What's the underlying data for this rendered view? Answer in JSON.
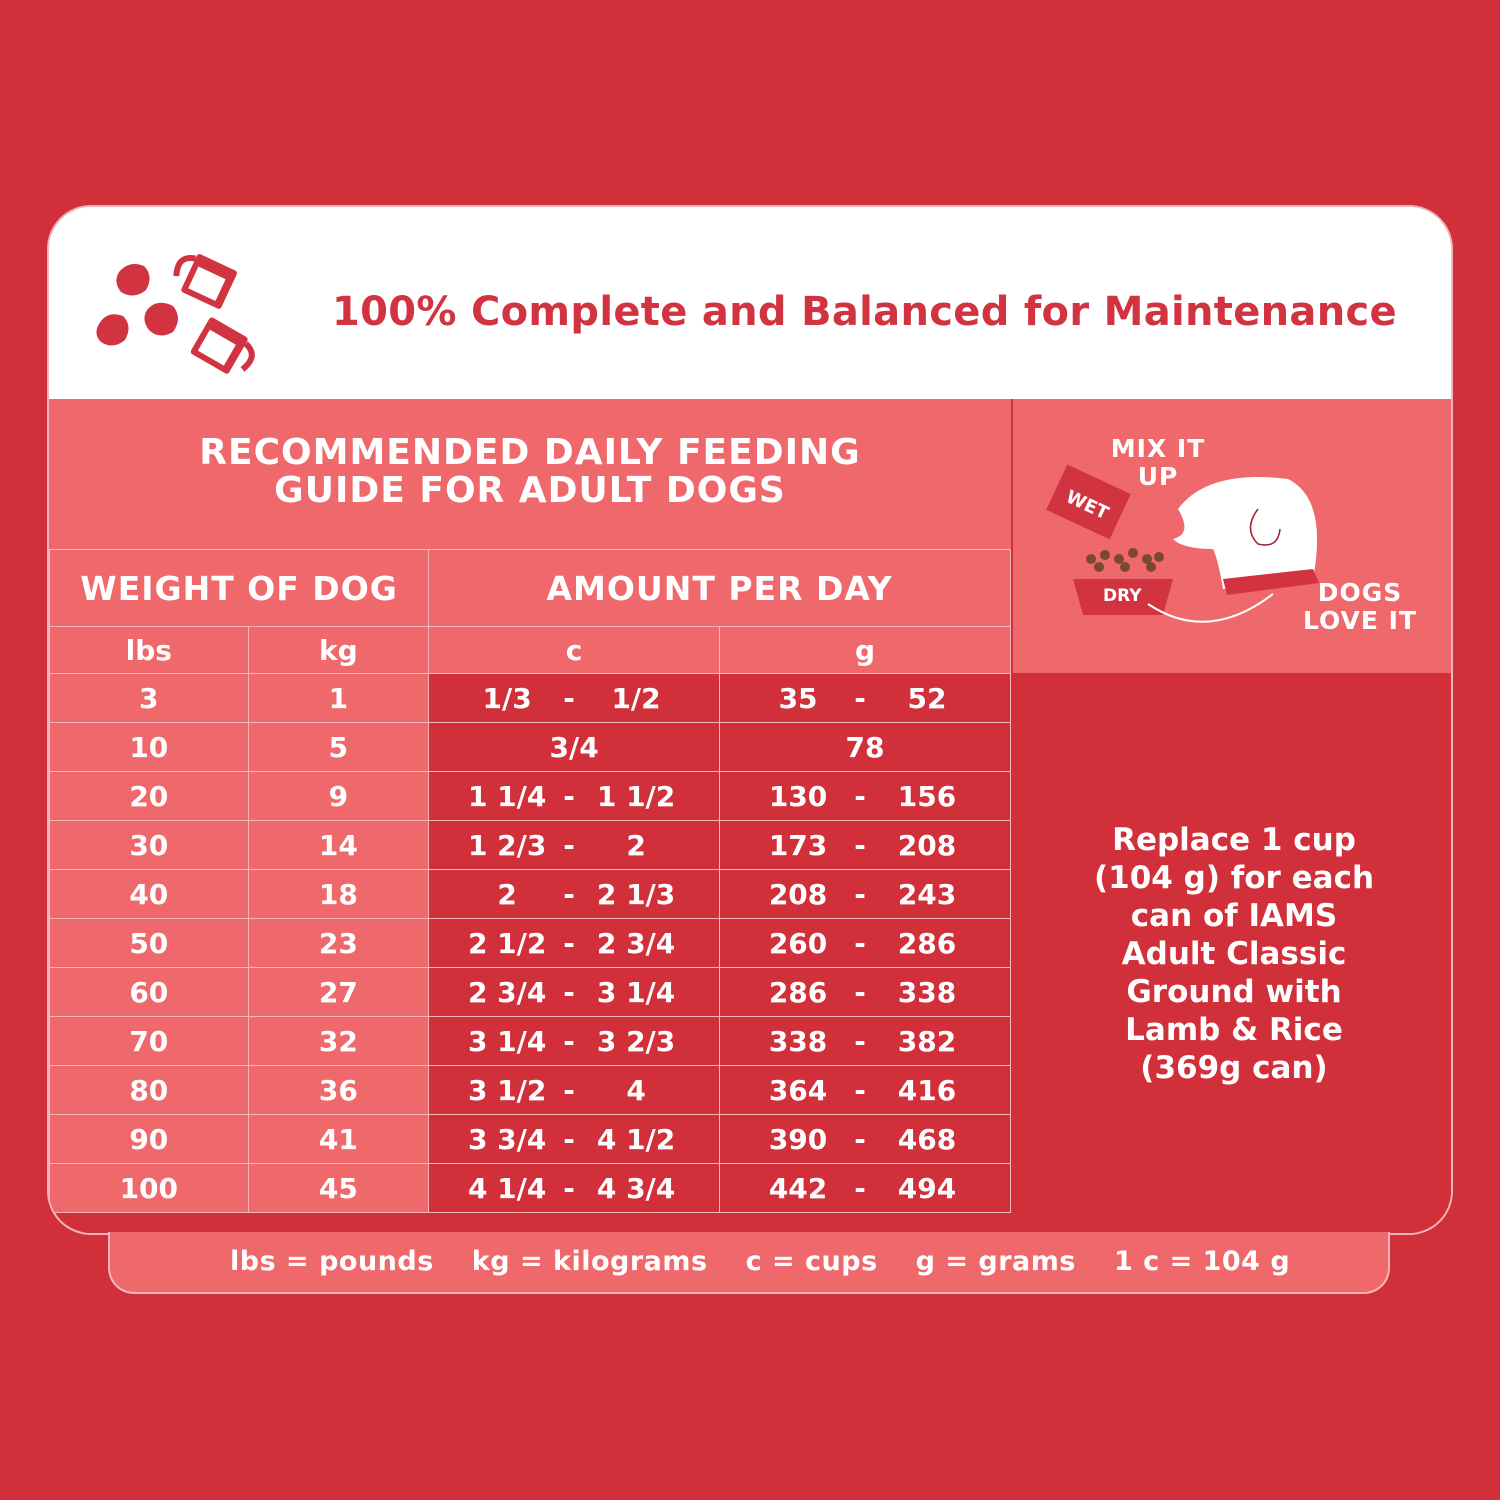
{
  "header": {
    "title": "100% Complete and Balanced for Maintenance",
    "icon": "kibble-and-measuring-cups-icon"
  },
  "guide": {
    "title_line1": "RECOMMENDED DAILY FEEDING",
    "title_line2": "GUIDE FOR ADULT DOGS"
  },
  "table": {
    "headers": {
      "weight": "WEIGHT OF DOG",
      "amount": "AMOUNT PER DAY",
      "lbs": "lbs",
      "kg": "kg",
      "cups": "c",
      "grams": "g"
    },
    "rows": [
      {
        "lbs": "3",
        "kg": "1",
        "c_min": "1/3",
        "c_max": "1/2",
        "g_min": "35",
        "g_max": "52"
      },
      {
        "lbs": "10",
        "kg": "5",
        "c_single": "3/4",
        "g_single": "78"
      },
      {
        "lbs": "20",
        "kg": "9",
        "c_min": "1 1/4",
        "c_max": "1 1/2",
        "g_min": "130",
        "g_max": "156"
      },
      {
        "lbs": "30",
        "kg": "14",
        "c_min": "1 2/3",
        "c_max": "2",
        "g_min": "173",
        "g_max": "208"
      },
      {
        "lbs": "40",
        "kg": "18",
        "c_min": "2",
        "c_max": "2 1/3",
        "g_min": "208",
        "g_max": "243"
      },
      {
        "lbs": "50",
        "kg": "23",
        "c_min": "2 1/2",
        "c_max": "2 3/4",
        "g_min": "260",
        "g_max": "286"
      },
      {
        "lbs": "60",
        "kg": "27",
        "c_min": "2 3/4",
        "c_max": "3 1/4",
        "g_min": "286",
        "g_max": "338"
      },
      {
        "lbs": "70",
        "kg": "32",
        "c_min": "3 1/4",
        "c_max": "3 2/3",
        "g_min": "338",
        "g_max": "382"
      },
      {
        "lbs": "80",
        "kg": "36",
        "c_min": "3 1/2",
        "c_max": "4",
        "g_min": "364",
        "g_max": "416"
      },
      {
        "lbs": "90",
        "kg": "41",
        "c_min": "3 3/4",
        "c_max": "4 1/2",
        "g_min": "390",
        "g_max": "468"
      },
      {
        "lbs": "100",
        "kg": "45",
        "c_min": "4 1/4",
        "c_max": "4 3/4",
        "g_min": "442",
        "g_max": "494"
      }
    ],
    "dash": "-"
  },
  "mix": {
    "mix_label_line1": "MIX IT",
    "mix_label_line2": "UP",
    "wet_label": "WET",
    "dry_label": "DRY",
    "love_label_line1": "DOGS",
    "love_label_line2": "LOVE IT"
  },
  "replace": {
    "lines": [
      "Replace 1 cup",
      "(104 g) for each",
      "can of IAMS",
      "Adult Classic",
      "Ground with",
      "Lamb & Rice",
      "(369g can)"
    ]
  },
  "footer": {
    "items": [
      "lbs = pounds",
      "kg = kilograms",
      "c = cups",
      "g = grams",
      "1 c = 104 g"
    ]
  },
  "colors": {
    "background": "#d12f3a",
    "panel_light": "#ef686b",
    "title_red": "#d13440",
    "white": "#ffffff"
  }
}
